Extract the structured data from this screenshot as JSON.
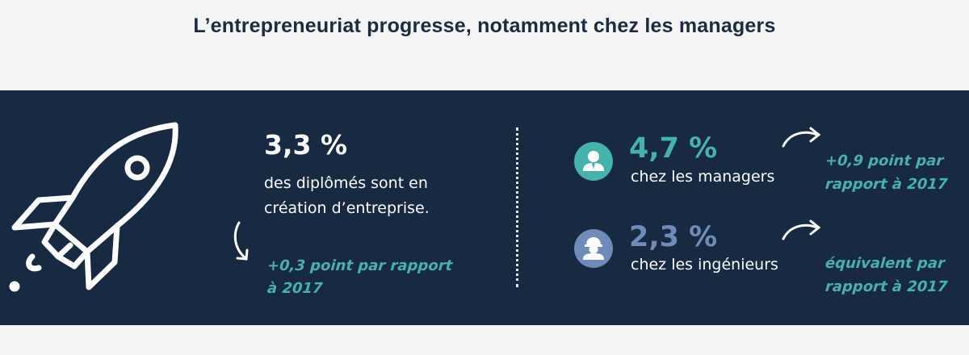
{
  "title": "L’entrepreneuriat progresse, notamment chez les managers",
  "colors": {
    "band": "#172a41",
    "accent_teal": "#43b3ab",
    "accent_blue": "#6f8cb9",
    "title": "#1b2b41"
  },
  "left_stat": {
    "value": "3,3 %",
    "line1": "des diplômés sont en",
    "line2": "création d’entreprise.",
    "note_line1": "+0,3 point par rapport",
    "note_line2": "à 2017"
  },
  "managers": {
    "icon": "manager-icon",
    "value": "4,7 %",
    "label": "chez les managers",
    "note_line1": "+0,9 point par",
    "note_line2": "rapport à 2017"
  },
  "engineers": {
    "icon": "engineer-hardhat-icon",
    "value": "2,3 %",
    "label": "chez les ingénieurs",
    "note_line1": "équivalent par",
    "note_line2": "rapport à 2017"
  }
}
